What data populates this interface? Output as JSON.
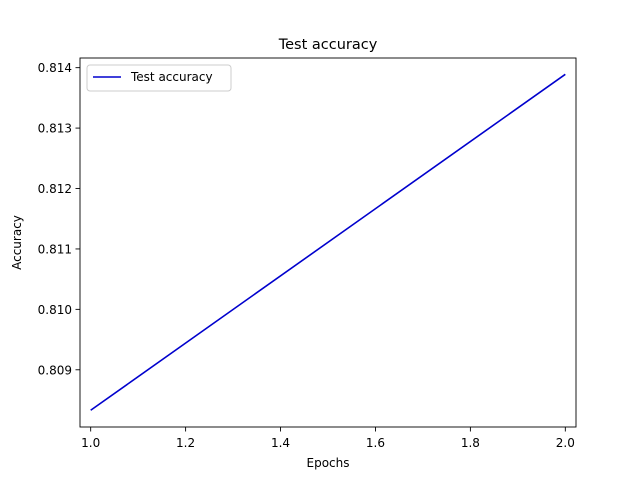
{
  "chart_data": {
    "type": "line",
    "title": "Test accuracy",
    "xlabel": "Epochs",
    "ylabel": "Accuracy",
    "xlim": [
      0.9775,
      2.0225
    ],
    "ylim": [
      0.808053,
      0.81416
    ],
    "xticks": [
      1.0,
      1.2,
      1.4,
      1.6,
      1.8,
      2.0
    ],
    "xtick_labels": [
      "1.0",
      "1.2",
      "1.4",
      "1.6",
      "1.8",
      "2.0"
    ],
    "yticks": [
      0.809,
      0.81,
      0.811,
      0.812,
      0.813,
      0.814
    ],
    "ytick_labels": [
      "0.809",
      "0.810",
      "0.811",
      "0.812",
      "0.813",
      "0.814"
    ],
    "grid": false,
    "legend_position": "top-left",
    "series": [
      {
        "name": "Test accuracy",
        "color": "#0000cd",
        "x": [
          1,
          2
        ],
        "y": [
          0.80833,
          0.81389
        ]
      }
    ]
  }
}
